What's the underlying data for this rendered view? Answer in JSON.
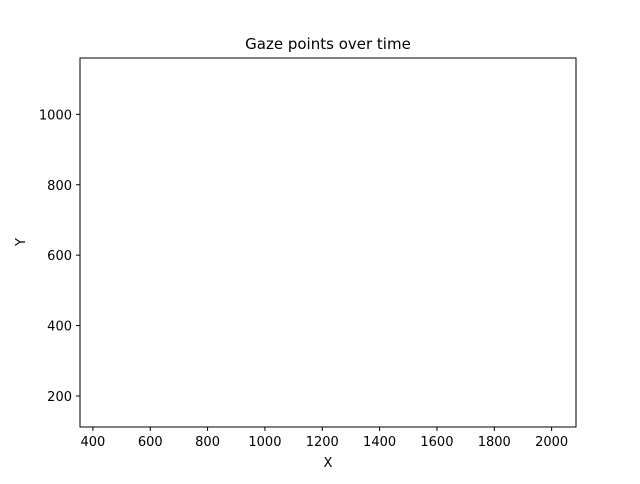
{
  "chart_data": {
    "type": "scatter",
    "title": "Gaze points over time",
    "xlabel": "X",
    "ylabel": "Y",
    "xlim": [
      355,
      2085
    ],
    "ylim": [
      112,
      1160
    ],
    "xticks": [
      400,
      600,
      800,
      1000,
      1200,
      1400,
      1600,
      1800,
      2000
    ],
    "yticks": [
      200,
      400,
      600,
      800,
      1000
    ],
    "grid": false,
    "legend": "none",
    "series": [
      {
        "x": [],
        "y": []
      }
    ],
    "colors": {
      "background": "#ffffff",
      "axes": "#000000",
      "marker": "#1f77b4"
    }
  }
}
